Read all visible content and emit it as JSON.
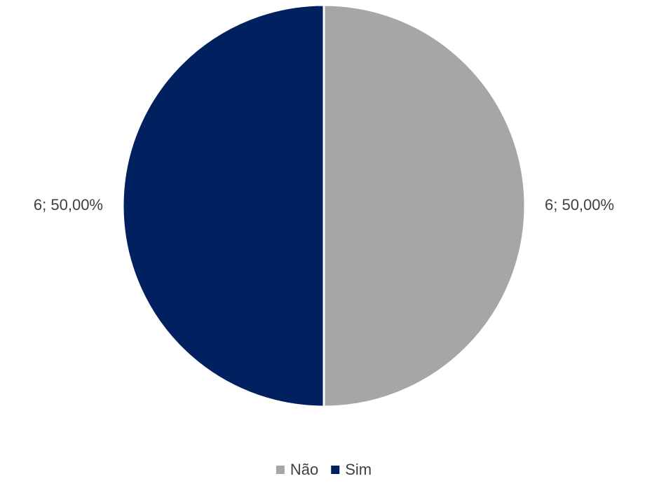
{
  "chart_data": {
    "type": "pie",
    "title": "",
    "slices": [
      {
        "name": "Não",
        "value": 6,
        "percent": 50.0,
        "label": "6; 50,00%",
        "color": "#a6a6a6"
      },
      {
        "name": "Sim",
        "value": 6,
        "percent": 50.0,
        "label": "6; 50,00%",
        "color": "#002060"
      }
    ],
    "legend": {
      "placement": "bottom",
      "entries": [
        "Não",
        "Sim"
      ]
    }
  }
}
